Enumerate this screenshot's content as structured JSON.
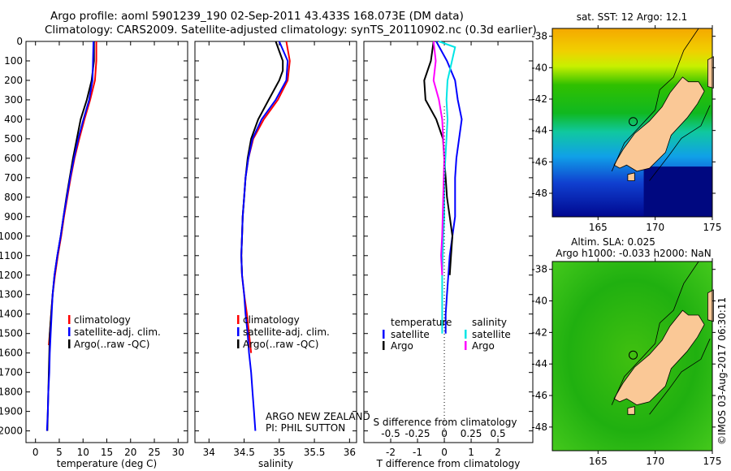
{
  "title": {
    "line1": "Argo profile: aoml 5901239_190 02-Sep-2011 43.433S 168.073E (DM data)",
    "line2": "Climatology: CARS2009. Satellite-adjusted climatology: synTS_20110902.nc (0.3d earlier)"
  },
  "colors": {
    "climatology": "#ff0000",
    "satellite": "#0000ff",
    "argo": "#000000",
    "sal_satellite": "#00e5e5",
    "sal_argo": "#ff00ff"
  },
  "chart_data": [
    {
      "type": "line",
      "xlabel": "temperature (deg C)",
      "ylabel": "",
      "xlim": [
        -2,
        32
      ],
      "ylim": [
        2060,
        0
      ],
      "xticks": [
        "0",
        "5",
        "10",
        "15",
        "20",
        "25",
        "30"
      ],
      "xtick_values": [
        0,
        5,
        10,
        15,
        20,
        25,
        30
      ],
      "yticks": [
        "0",
        "100",
        "200",
        "300",
        "400",
        "500",
        "600",
        "700",
        "800",
        "900",
        "1000",
        "1100",
        "1200",
        "1300",
        "1400",
        "1500",
        "1600",
        "1700",
        "1800",
        "1900",
        "2000"
      ],
      "ytick_values": [
        0,
        100,
        200,
        300,
        400,
        500,
        600,
        700,
        800,
        900,
        1000,
        1100,
        1200,
        1300,
        1400,
        1500,
        1600,
        1700,
        1800,
        1900,
        2000
      ],
      "legend": [
        "climatology",
        "satellite-adj. clim.",
        "Argo(..raw -QC)"
      ],
      "series": [
        {
          "name": "climatology",
          "color": "#ff0000",
          "x": [
            12.8,
            12.8,
            12.5,
            11.5,
            10.3,
            9.2,
            8.2,
            7.4,
            6.7,
            6.0,
            5.4,
            4.7,
            4.1,
            3.6,
            3.3,
            3.0,
            2.8
          ],
          "y": [
            0,
            100,
            200,
            300,
            400,
            500,
            600,
            700,
            800,
            900,
            1000,
            1100,
            1200,
            1300,
            1400,
            1500,
            1560
          ]
        },
        {
          "name": "Argo(..raw -QC)",
          "color": "#000000",
          "x": [
            12.3,
            12.3,
            11.8,
            10.8,
            9.5,
            8.7,
            7.9,
            7.2,
            6.5,
            5.9,
            5.3,
            4.6,
            4.0,
            3.6,
            3.3,
            3.0,
            2.9,
            2.8,
            2.7,
            2.6,
            2.5
          ],
          "y": [
            0,
            100,
            200,
            300,
            400,
            500,
            600,
            700,
            800,
            900,
            1000,
            1100,
            1200,
            1300,
            1400,
            1500,
            1600,
            1700,
            1800,
            1900,
            2000
          ]
        },
        {
          "name": "satellite-adj. clim.",
          "color": "#0000ff",
          "x": [
            12.2,
            12.1,
            12.0,
            11.3,
            10.1,
            9.0,
            8.1,
            7.3,
            6.6,
            5.9,
            5.3,
            4.6,
            4.0,
            3.6,
            3.4,
            3.2,
            3.0,
            2.9,
            2.7,
            2.6,
            2.4
          ],
          "y": [
            0,
            100,
            200,
            300,
            400,
            500,
            600,
            700,
            800,
            900,
            1000,
            1100,
            1200,
            1300,
            1400,
            1500,
            1600,
            1700,
            1800,
            1900,
            2000
          ]
        }
      ]
    },
    {
      "type": "line",
      "xlabel": "salinity",
      "xlim": [
        33.8,
        36.1
      ],
      "ylim": [
        2060,
        0
      ],
      "xticks": [
        "34",
        "34.5",
        "35",
        "35.5",
        "36"
      ],
      "xtick_values": [
        34,
        34.5,
        35,
        35.5,
        36
      ],
      "legend": [
        "climatology",
        "satellite-adj. clim.",
        "Argo(..raw -QC)"
      ],
      "annotation": [
        "ARGO NEW ZEALAND",
        "PI: PHIL SUTTON"
      ],
      "series": [
        {
          "name": "climatology",
          "color": "#ff0000",
          "x": [
            35.1,
            35.15,
            35.12,
            34.98,
            34.78,
            34.63,
            34.56,
            34.52,
            34.5,
            34.48,
            34.47,
            34.46,
            34.47,
            34.5,
            34.54,
            34.57,
            34.6
          ],
          "y": [
            0,
            100,
            200,
            300,
            400,
            500,
            600,
            700,
            800,
            900,
            1000,
            1100,
            1200,
            1300,
            1400,
            1500,
            1600
          ]
        },
        {
          "name": "Argo(..raw -QC)",
          "color": "#000000",
          "x": [
            34.95,
            35.0,
            35.05,
            35.05,
            35.0,
            34.85,
            34.7,
            34.6,
            34.55,
            34.52,
            34.5,
            34.48,
            34.47,
            34.46,
            34.47
          ],
          "y": [
            0,
            50,
            100,
            150,
            200,
            300,
            400,
            500,
            600,
            700,
            800,
            900,
            1000,
            1100,
            1200
          ]
        },
        {
          "name": "satellite-adj. clim.",
          "color": "#0000ff",
          "x": [
            35.0,
            35.12,
            35.1,
            34.95,
            34.75,
            34.62,
            34.56,
            34.52,
            34.5,
            34.48,
            34.47,
            34.46,
            34.47,
            34.5,
            34.52,
            34.55,
            34.57,
            34.6,
            34.62,
            34.64,
            34.66
          ],
          "y": [
            0,
            100,
            200,
            300,
            400,
            500,
            600,
            700,
            800,
            900,
            1000,
            1100,
            1200,
            1300,
            1400,
            1500,
            1600,
            1700,
            1800,
            1900,
            2000
          ]
        }
      ]
    },
    {
      "type": "line",
      "xlabel": "T difference from climatology",
      "xlabel2": "S difference from climatology",
      "xlim": [
        -3,
        3.3
      ],
      "ylim": [
        2060,
        0
      ],
      "xticks": [
        "-2",
        "-1",
        "0",
        "1",
        "2"
      ],
      "xtick_values": [
        -2,
        -1,
        0,
        1,
        2
      ],
      "xticks2": [
        "-0.5",
        "-0.25",
        "0",
        "0.25",
        "0.5"
      ],
      "xtick2_values": [
        -0.5,
        -0.25,
        0,
        0.25,
        0.5
      ],
      "legend_temperature": {
        "title": "temperature",
        "items": [
          "satellite",
          "Argo"
        ]
      },
      "legend_salinity": {
        "title": "salinity",
        "items": [
          "satellite",
          "Argo"
        ]
      },
      "series": [
        {
          "name": "T satellite",
          "color": "#0000ff",
          "axis": "T",
          "x": [
            -0.3,
            0.1,
            0.4,
            0.5,
            0.65,
            0.55,
            0.45,
            0.4,
            0.4,
            0.4,
            0.3,
            0.2,
            0.15,
            0.1,
            0.05,
            0.05
          ],
          "y": [
            0,
            100,
            200,
            300,
            400,
            500,
            600,
            700,
            800,
            900,
            1000,
            1100,
            1200,
            1300,
            1400,
            1500
          ]
        },
        {
          "name": "T Argo",
          "color": "#000000",
          "axis": "T",
          "x": [
            -0.4,
            -0.5,
            -0.75,
            -0.7,
            -0.3,
            -0.05,
            0,
            0.05,
            0.1,
            0.2,
            0.3,
            0.25,
            0.2
          ],
          "y": [
            0,
            100,
            200,
            300,
            400,
            500,
            600,
            700,
            800,
            900,
            1000,
            1100,
            1200
          ]
        },
        {
          "name": "S satellite",
          "color": "#00e5e5",
          "axis": "S",
          "x": [
            -0.05,
            0.1,
            0.03,
            0.02,
            0.03,
            0.02,
            0,
            0,
            -0.01,
            -0.02,
            -0.02,
            -0.02,
            -0.02
          ],
          "y": [
            0,
            30,
            200,
            300,
            400,
            500,
            700,
            900,
            1000,
            1200,
            1300,
            1400,
            1500
          ]
        },
        {
          "name": "S Argo",
          "color": "#ff00ff",
          "axis": "S",
          "x": [
            -0.1,
            -0.08,
            -0.1,
            -0.05,
            -0.02,
            0,
            -0.01,
            -0.02,
            -0.03,
            -0.02
          ],
          "y": [
            0,
            100,
            200,
            300,
            400,
            600,
            800,
            1000,
            1100,
            1200
          ]
        }
      ]
    },
    {
      "type": "heatmap",
      "title": "sat. SST: 12 Argo: 12.1",
      "xticks": [
        "165",
        "170",
        "175"
      ],
      "xtick_values": [
        165,
        170,
        175
      ],
      "yticks": [
        "-38",
        "-40",
        "-42",
        "-44",
        "-46",
        "-48"
      ],
      "ytick_values": [
        -38,
        -40,
        -42,
        -44,
        -46,
        -48
      ],
      "xlim": [
        161,
        175
      ],
      "ylim": [
        -49.5,
        -37.5
      ],
      "argo_position": {
        "lon": 168.073,
        "lat": -43.433
      }
    },
    {
      "type": "heatmap",
      "title": "Altim. SLA: 0.025",
      "subtitle": "Argo h1000: -0.033 h2000: NaN",
      "xticks": [
        "165",
        "170",
        "175"
      ],
      "xtick_values": [
        165,
        170,
        175
      ],
      "yticks": [
        "-38",
        "-40",
        "-42",
        "-44",
        "-46",
        "-48"
      ],
      "ytick_values": [
        -38,
        -40,
        -42,
        -44,
        -46,
        -48
      ],
      "xlim": [
        161,
        175
      ],
      "ylim": [
        -49.5,
        -37.5
      ],
      "argo_position": {
        "lon": 168.073,
        "lat": -43.433
      }
    }
  ],
  "credit": "©IMOS 03-Aug-2017 06:30:11"
}
